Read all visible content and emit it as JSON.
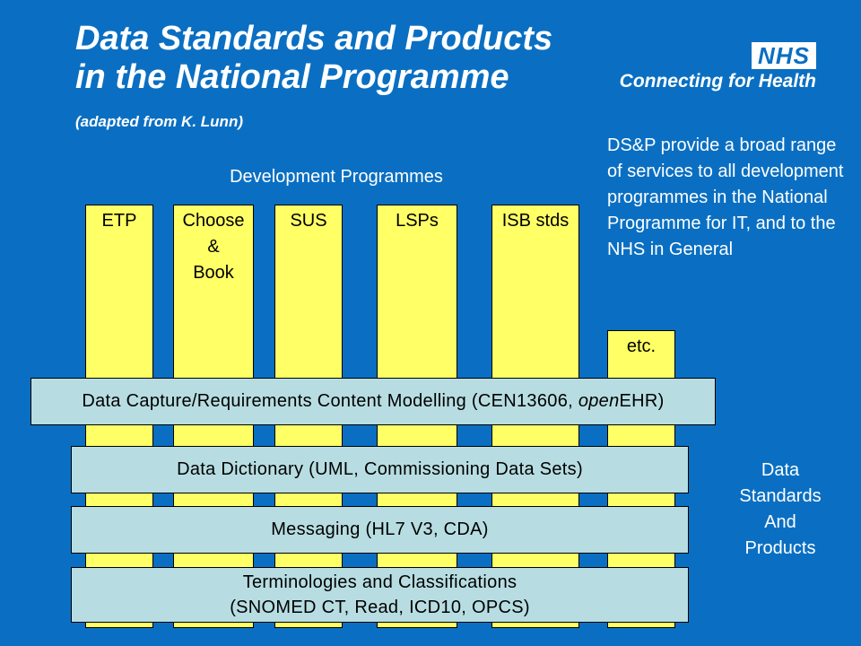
{
  "title": {
    "main": "Data Standards and Products in the National Programme",
    "attribution": "(adapted from K. Lunn)"
  },
  "logo": {
    "badge": "NHS",
    "tagline": "Connecting for Health"
  },
  "description": "DS&P provide a broad range of services to all development programmes in the National Programme for IT, and to the NHS in General",
  "development_label": "Development Programmes",
  "programmes": {
    "etp": "ETP",
    "choose_book": [
      "Choose",
      "&",
      "Book"
    ],
    "sus": "SUS",
    "lsps": "LSPs",
    "isb": "ISB stds",
    "etc": "etc."
  },
  "layers": {
    "capture_prefix": "Data Capture/Requirements Content Modelling (CEN13606, ",
    "capture_italic": "open",
    "capture_suffix": "EHR)",
    "dictionary": "Data Dictionary (UML, Commissioning Data Sets)",
    "messaging": "Messaging (HL7 V3, CDA)",
    "terminologies_line1": "Terminologies and Classifications",
    "terminologies_line2": "(SNOMED CT, Read, ICD10, OPCS)"
  },
  "dsp_label": [
    "Data",
    "Standards",
    "And",
    "Products"
  ],
  "colors": {
    "background": "#0a6fc2",
    "programme_column": "#ffff66",
    "layer_box": "#b7dde2"
  }
}
